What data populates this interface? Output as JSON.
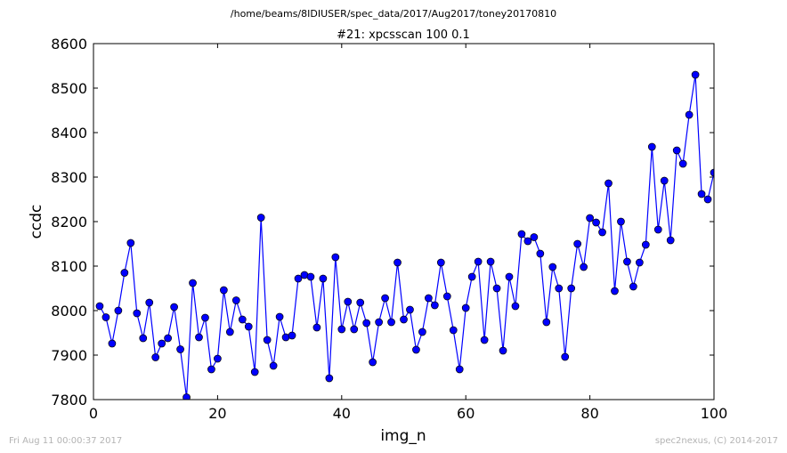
{
  "header": {
    "path": "/home/beams/8IDIUSER/spec_data/2017/Aug2017/toney20170810"
  },
  "footer": {
    "timestamp": "Fri Aug 11 00:00:37 2017",
    "credit": "spec2nexus, (C) 2014-2017"
  },
  "colors": {
    "series": "#0000ff",
    "footer_text": "#b3b3b3"
  },
  "chart_data": {
    "type": "line",
    "title": "#21: xpcsscan 100 0.1",
    "xlabel": "img_n",
    "ylabel": "ccdc",
    "xlim": [
      0,
      100
    ],
    "ylim": [
      7800,
      8600
    ],
    "xticks": [
      0,
      20,
      40,
      60,
      80,
      100
    ],
    "yticks": [
      7800,
      7900,
      8000,
      8100,
      8200,
      8300,
      8400,
      8500,
      8600
    ],
    "grid": false,
    "legend": "none",
    "markers": "circle",
    "series": [
      {
        "x": [
          1,
          2,
          3,
          4,
          5,
          6,
          7,
          8,
          9,
          10,
          11,
          12,
          13,
          14,
          15,
          16,
          17,
          18,
          19,
          20,
          21,
          22,
          23,
          24,
          25,
          26,
          27,
          28,
          29,
          30,
          31,
          32,
          33,
          34,
          35,
          36,
          37,
          38,
          39,
          40,
          41,
          42,
          43,
          44,
          45,
          46,
          47,
          48,
          49,
          50,
          51,
          52,
          53,
          54,
          55,
          56,
          57,
          58,
          59,
          60,
          61,
          62,
          63,
          64,
          65,
          66,
          67,
          68,
          69,
          70,
          71,
          72,
          73,
          74,
          75,
          76,
          77,
          78,
          79,
          80,
          81,
          82,
          83,
          84,
          85,
          86,
          87,
          88,
          89,
          90,
          91,
          92,
          93,
          94,
          95,
          96,
          97,
          98,
          99,
          100
        ],
        "values": [
          8010,
          7985,
          7926,
          8000,
          8085,
          8152,
          7994,
          7938,
          8018,
          7895,
          7926,
          7938,
          8008,
          7913,
          7805,
          8062,
          7940,
          7984,
          7868,
          7892,
          8046,
          7952,
          8023,
          7980,
          7964,
          7862,
          8209,
          7934,
          7876,
          7986,
          7940,
          7944,
          8072,
          8080,
          8076,
          7962,
          8072,
          7848,
          8120,
          7958,
          8020,
          7958,
          8018,
          7972,
          7884,
          7974,
          8028,
          7974,
          8108,
          7980,
          8002,
          7912,
          7952,
          8028,
          8012,
          8108,
          8032,
          7956,
          7868,
          8006,
          8076,
          8110,
          7934,
          8110,
          8050,
          7910,
          8076,
          8010,
          8172,
          8156,
          8165,
          8128,
          7974,
          8098,
          8050,
          7896,
          8050,
          8150,
          8098,
          8208,
          8198,
          8176,
          8286,
          8044,
          8200,
          8110,
          8054,
          8108,
          8148,
          8368,
          8182,
          8292,
          8158,
          8360,
          8330,
          8440,
          8530,
          8262,
          8250,
          8310
        ]
      }
    ]
  }
}
